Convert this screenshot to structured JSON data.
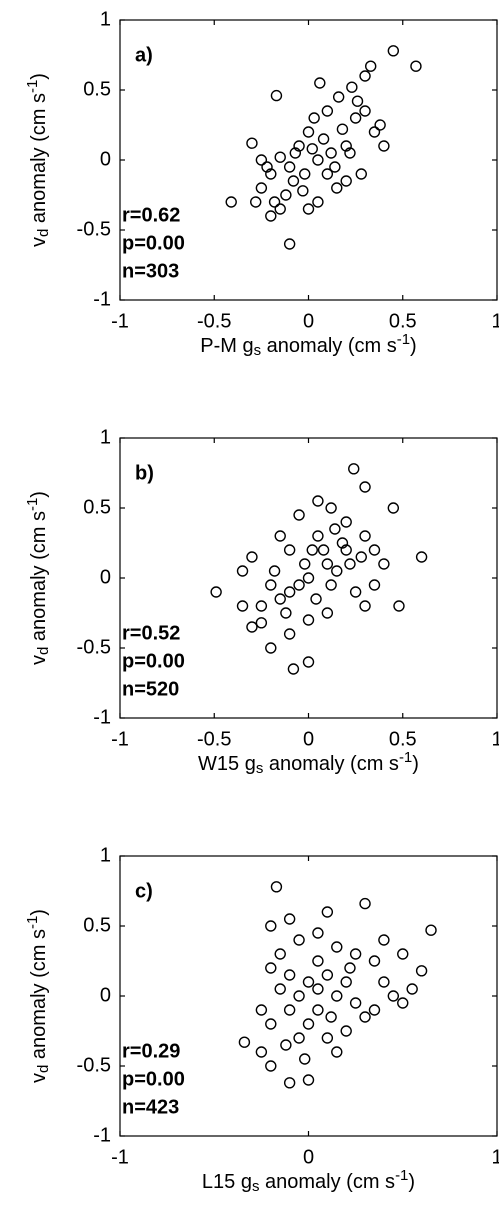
{
  "chart_data": [
    {
      "type": "scatter",
      "label": "a)",
      "stats": [
        "r=0.62",
        "p=0.00",
        "n=303"
      ],
      "color": "#000000",
      "xlabel": [
        {
          "text": "P-M g"
        },
        {
          "text": "s",
          "shift": "sub"
        },
        {
          "text": " anomaly (cm s"
        },
        {
          "text": "-1",
          "shift": "super"
        },
        {
          "text": ")"
        }
      ],
      "ylabel": [
        {
          "text": "v"
        },
        {
          "text": "d",
          "shift": "sub"
        },
        {
          "text": " anomaly (cm s"
        },
        {
          "text": "-1",
          "shift": "super"
        },
        {
          "text": ")"
        }
      ],
      "xlim": [
        -1,
        1
      ],
      "ylim": [
        -1,
        1
      ],
      "xticks": [
        -1,
        -0.5,
        0,
        0.5,
        1
      ],
      "yticks": [
        -1,
        -0.5,
        0,
        0.5,
        1
      ],
      "x": [
        -0.41,
        0.45,
        0.57,
        -0.17,
        0.33,
        0.3,
        0.23,
        -0.1,
        -0.2,
        -0.15,
        0.05,
        0.15,
        0.2,
        0.25,
        0.1,
        0.0,
        -0.05,
        -0.1,
        -0.2,
        -0.25,
        -0.25,
        -0.3,
        0.35,
        0.38,
        0.4,
        0.28,
        0.12,
        0.05,
        -0.02,
        -0.08,
        -0.12,
        0.02,
        0.08,
        0.18,
        -0.18,
        -0.22,
        0.03,
        -0.07,
        0.14,
        0.22,
        0.1,
        -0.15,
        0.3,
        0.26,
        -0.03,
        0.0,
        0.06,
        0.16,
        0.2,
        -0.28
      ],
      "y": [
        -0.3,
        0.78,
        0.67,
        0.46,
        0.67,
        0.6,
        0.52,
        -0.6,
        -0.4,
        -0.35,
        -0.3,
        -0.2,
        0.1,
        0.3,
        0.35,
        0.2,
        0.1,
        -0.05,
        -0.1,
        -0.2,
        0.0,
        0.12,
        0.2,
        0.25,
        0.1,
        -0.1,
        0.05,
        0.0,
        -0.1,
        -0.15,
        -0.25,
        0.08,
        0.15,
        0.22,
        -0.3,
        -0.05,
        0.3,
        0.05,
        -0.05,
        0.05,
        -0.1,
        0.02,
        0.35,
        0.42,
        -0.22,
        -0.35,
        0.55,
        0.45,
        -0.15,
        -0.3
      ]
    },
    {
      "type": "scatter",
      "label": "b)",
      "stats": [
        "r=0.52",
        "p=0.00",
        "n=520"
      ],
      "color": "#000000",
      "xlabel": [
        {
          "text": "W15 g"
        },
        {
          "text": "s",
          "shift": "sub"
        },
        {
          "text": " anomaly (cm s"
        },
        {
          "text": "-1",
          "shift": "super"
        },
        {
          "text": ")"
        }
      ],
      "ylabel": [
        {
          "text": "v"
        },
        {
          "text": "d",
          "shift": "sub"
        },
        {
          "text": " anomaly (cm s"
        },
        {
          "text": "-1",
          "shift": "super"
        },
        {
          "text": ")"
        }
      ],
      "xlim": [
        -1,
        1
      ],
      "ylim": [
        -1,
        1
      ],
      "xticks": [
        -1,
        -0.5,
        0,
        0.5,
        1
      ],
      "yticks": [
        -1,
        -0.5,
        0,
        0.5,
        1
      ],
      "x": [
        -0.49,
        0.6,
        0.48,
        0.24,
        0.3,
        0.45,
        -0.08,
        0.0,
        -0.2,
        -0.25,
        -0.35,
        -0.3,
        -0.35,
        0.05,
        0.12,
        0.2,
        0.3,
        0.35,
        0.4,
        0.1,
        0.0,
        -0.05,
        -0.1,
        -0.15,
        -0.2,
        0.15,
        0.2,
        0.25,
        0.3,
        -0.1,
        -0.15,
        -0.05,
        0.05,
        0.1,
        0.0,
        -0.1,
        0.08,
        0.18,
        -0.25,
        -0.02,
        0.12,
        0.22,
        0.28,
        -0.18,
        0.04,
        0.35,
        -0.3,
        -0.12,
        0.02,
        0.14
      ],
      "y": [
        -0.1,
        0.15,
        -0.2,
        0.78,
        0.65,
        0.5,
        -0.65,
        -0.6,
        -0.5,
        -0.32,
        -0.2,
        0.15,
        0.05,
        0.55,
        0.5,
        0.4,
        0.3,
        0.2,
        0.1,
        0.1,
        0.0,
        -0.05,
        -0.1,
        -0.15,
        -0.05,
        0.05,
        0.2,
        -0.1,
        -0.2,
        0.2,
        0.3,
        0.45,
        0.3,
        -0.25,
        -0.3,
        -0.4,
        0.2,
        0.25,
        -0.2,
        0.1,
        -0.05,
        0.1,
        0.15,
        0.05,
        -0.15,
        -0.05,
        -0.35,
        -0.25,
        0.2,
        0.35
      ]
    },
    {
      "type": "scatter",
      "label": "c)",
      "stats": [
        "r=0.29",
        "p=0.00",
        "n=423"
      ],
      "color": "#000000",
      "xlabel": [
        {
          "text": "L15 g"
        },
        {
          "text": "s",
          "shift": "sub"
        },
        {
          "text": " anomaly (cm s"
        },
        {
          "text": "-1",
          "shift": "super"
        },
        {
          "text": ")"
        }
      ],
      "ylabel": [
        {
          "text": "v"
        },
        {
          "text": "d",
          "shift": "sub"
        },
        {
          "text": " anomaly (cm s"
        },
        {
          "text": "-1",
          "shift": "super"
        },
        {
          "text": ")"
        }
      ],
      "xlim": [
        -1,
        1
      ],
      "ylim": [
        -1,
        1
      ],
      "xticks": [
        -1,
        0,
        1
      ],
      "yticks": [
        -1,
        -0.5,
        0,
        0.5,
        1
      ],
      "x": [
        -0.34,
        0.65,
        0.6,
        0.55,
        0.5,
        0.5,
        -0.17,
        0.3,
        0.1,
        -0.1,
        -0.2,
        0.0,
        -0.1,
        -0.2,
        -0.25,
        -0.25,
        -0.2,
        -0.15,
        -0.05,
        0.05,
        0.15,
        0.25,
        0.35,
        0.4,
        0.45,
        0.3,
        0.2,
        0.1,
        0.0,
        -0.1,
        -0.05,
        0.0,
        0.05,
        0.1,
        0.15,
        0.2,
        -0.15,
        -0.1,
        0.05,
        -0.05,
        0.25,
        0.35,
        -0.2,
        0.15,
        0.05,
        -0.02,
        0.12,
        0.22,
        -0.12,
        0.4
      ],
      "y": [
        -0.33,
        0.47,
        0.18,
        0.05,
        -0.05,
        0.3,
        0.78,
        0.66,
        0.6,
        0.55,
        0.5,
        -0.6,
        -0.62,
        -0.5,
        -0.4,
        -0.1,
        0.2,
        0.3,
        0.4,
        0.45,
        0.35,
        0.3,
        0.25,
        0.1,
        0.0,
        -0.15,
        -0.25,
        -0.3,
        -0.2,
        -0.1,
        0.0,
        0.1,
        0.05,
        0.15,
        0.0,
        0.1,
        0.05,
        0.15,
        -0.1,
        -0.3,
        -0.05,
        -0.1,
        -0.2,
        -0.4,
        0.25,
        -0.45,
        -0.15,
        0.2,
        -0.35,
        0.4
      ]
    }
  ]
}
